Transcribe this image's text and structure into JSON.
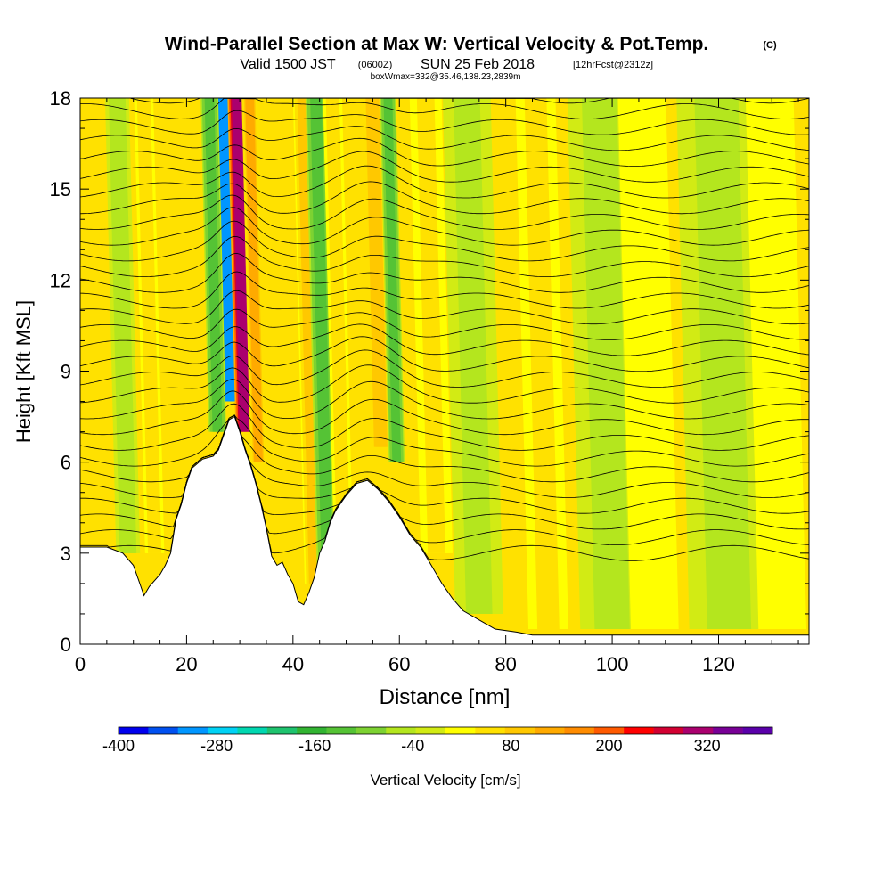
{
  "header": {
    "title": "Wind-Parallel Section at Max W: Vertical Velocity & Pot.Temp.",
    "copyright": "(C)",
    "valid_prefix": "Valid 1500 JST",
    "valid_zulu": "(0600Z)",
    "valid_date": "SUN 25 Feb 2018",
    "forecast": "[12hrFcst@2312z]",
    "boxwmax": "boxWmax=332@35.46,138.23,2839m"
  },
  "chart_data": {
    "type": "heatmap",
    "xlabel": "Distance [nm]",
    "ylabel": "Height [Kft MSL]",
    "xlim": [
      0,
      137
    ],
    "ylim": [
      0,
      18
    ],
    "x_ticks": [
      "0",
      "20",
      "40",
      "60",
      "80",
      "100",
      "120"
    ],
    "y_ticks": [
      "0",
      "3",
      "6",
      "9",
      "12",
      "15",
      "18"
    ],
    "colorbar": {
      "label": "Vertical Velocity [cm/s]",
      "tick_labels": [
        "-400",
        "-280",
        "-160",
        "-40",
        "80",
        "200",
        "320"
      ],
      "tick_values": [
        -400,
        -280,
        -160,
        -40,
        80,
        200,
        320
      ],
      "range": [
        -400,
        400
      ],
      "colors": [
        "#0000ee",
        "#0050f0",
        "#0096ff",
        "#00d2f5",
        "#00d7b0",
        "#1ec36e",
        "#32b432",
        "#55c335",
        "#7dd232",
        "#b4e61e",
        "#d2eb14",
        "#ffff00",
        "#ffe100",
        "#ffc800",
        "#ffaa00",
        "#ff8c00",
        "#ff5a00",
        "#ff0000",
        "#d20032",
        "#aa006e",
        "#780096",
        "#5a00aa"
      ]
    },
    "terrain_profile": [
      [
        0,
        3.2
      ],
      [
        2,
        3.2
      ],
      [
        5,
        3.2
      ],
      [
        8,
        3.0
      ],
      [
        10,
        2.6
      ],
      [
        11,
        2.1
      ],
      [
        12,
        1.6
      ],
      [
        13,
        1.9
      ],
      [
        15,
        2.3
      ],
      [
        16,
        2.6
      ],
      [
        17,
        3.0
      ],
      [
        18,
        4.1
      ],
      [
        19,
        4.6
      ],
      [
        20,
        5.3
      ],
      [
        21,
        5.8
      ],
      [
        23,
        6.1
      ],
      [
        25,
        6.2
      ],
      [
        26,
        6.4
      ],
      [
        27,
        6.9
      ],
      [
        28,
        7.4
      ],
      [
        29,
        7.5
      ],
      [
        30,
        7.0
      ],
      [
        31,
        6.4
      ],
      [
        32,
        5.9
      ],
      [
        33,
        5.3
      ],
      [
        34,
        4.6
      ],
      [
        35,
        3.8
      ],
      [
        36,
        2.9
      ],
      [
        37,
        2.6
      ],
      [
        38,
        2.7
      ],
      [
        39,
        2.3
      ],
      [
        40,
        2.0
      ],
      [
        41,
        1.4
      ],
      [
        42,
        1.3
      ],
      [
        43,
        1.7
      ],
      [
        44,
        2.2
      ],
      [
        45,
        3.0
      ],
      [
        46,
        3.4
      ],
      [
        47,
        4.0
      ],
      [
        48,
        4.4
      ],
      [
        50,
        4.9
      ],
      [
        52,
        5.3
      ],
      [
        54,
        5.4
      ],
      [
        56,
        5.1
      ],
      [
        58,
        4.7
      ],
      [
        60,
        4.2
      ],
      [
        62,
        3.6
      ],
      [
        64,
        3.2
      ],
      [
        66,
        2.6
      ],
      [
        68,
        2.0
      ],
      [
        70,
        1.5
      ],
      [
        72,
        1.1
      ],
      [
        75,
        0.8
      ],
      [
        78,
        0.5
      ],
      [
        82,
        0.4
      ],
      [
        85,
        0.3
      ],
      [
        90,
        0.3
      ],
      [
        100,
        0.3
      ],
      [
        110,
        0.3
      ],
      [
        120,
        0.3
      ],
      [
        130,
        0.3
      ],
      [
        137,
        0.3
      ]
    ],
    "w_bands": [
      {
        "x": 28.2,
        "w": -330,
        "half_width": 1.3,
        "z_bottom": 8.0
      },
      {
        "x": 25.8,
        "w": -130,
        "half_width": 1.1,
        "z_bottom": 7.0
      },
      {
        "x": 31.0,
        "w": 332,
        "half_width": 1.2,
        "z_bottom": 7.0
      },
      {
        "x": 33.5,
        "w": 120,
        "half_width": 1.0,
        "z_bottom": 6.0
      },
      {
        "x": 44.0,
        "w": 80,
        "half_width": 1.2,
        "z_bottom": 2.0
      },
      {
        "x": 46.5,
        "w": -140,
        "half_width": 1.3,
        "z_bottom": 2.0
      },
      {
        "x": 49.5,
        "w": 60,
        "half_width": 1.2,
        "z_bottom": 3.0
      },
      {
        "x": 56.5,
        "w": 100,
        "half_width": 1.2,
        "z_bottom": 6.5
      },
      {
        "x": 59.5,
        "w": -130,
        "half_width": 1.0,
        "z_bottom": 6.0
      },
      {
        "x": 9.0,
        "w": -50,
        "half_width": 1.5,
        "z_bottom": 3.0
      },
      {
        "x": 14.0,
        "w": 60,
        "half_width": 1.2,
        "z_bottom": 3.0
      },
      {
        "x": 67.0,
        "w": 40,
        "half_width": 2.0,
        "z_bottom": 3.0
      },
      {
        "x": 75.0,
        "w": -40,
        "half_width": 3.0,
        "z_bottom": 1.0
      },
      {
        "x": 88.0,
        "w": 40,
        "half_width": 2.5,
        "z_bottom": 0.5
      },
      {
        "x": 100.0,
        "w": -40,
        "half_width": 4.0,
        "z_bottom": 0.5
      },
      {
        "x": 108.0,
        "w": 30,
        "half_width": 3.0,
        "z_bottom": 0.5
      },
      {
        "x": 122.0,
        "w": -40,
        "half_width": 5.0,
        "z_bottom": 0.5
      },
      {
        "x": 132.0,
        "w": 30,
        "half_width": 3.0,
        "z_bottom": 0.5
      }
    ],
    "background_w": 40,
    "theta_levels_k": [
      6,
      8,
      10,
      12,
      14,
      16,
      18,
      20,
      22,
      24,
      26,
      28,
      30,
      32,
      34,
      36,
      38,
      40,
      42,
      44,
      46,
      48,
      50,
      52,
      54,
      56,
      58,
      60,
      62,
      64
    ]
  }
}
